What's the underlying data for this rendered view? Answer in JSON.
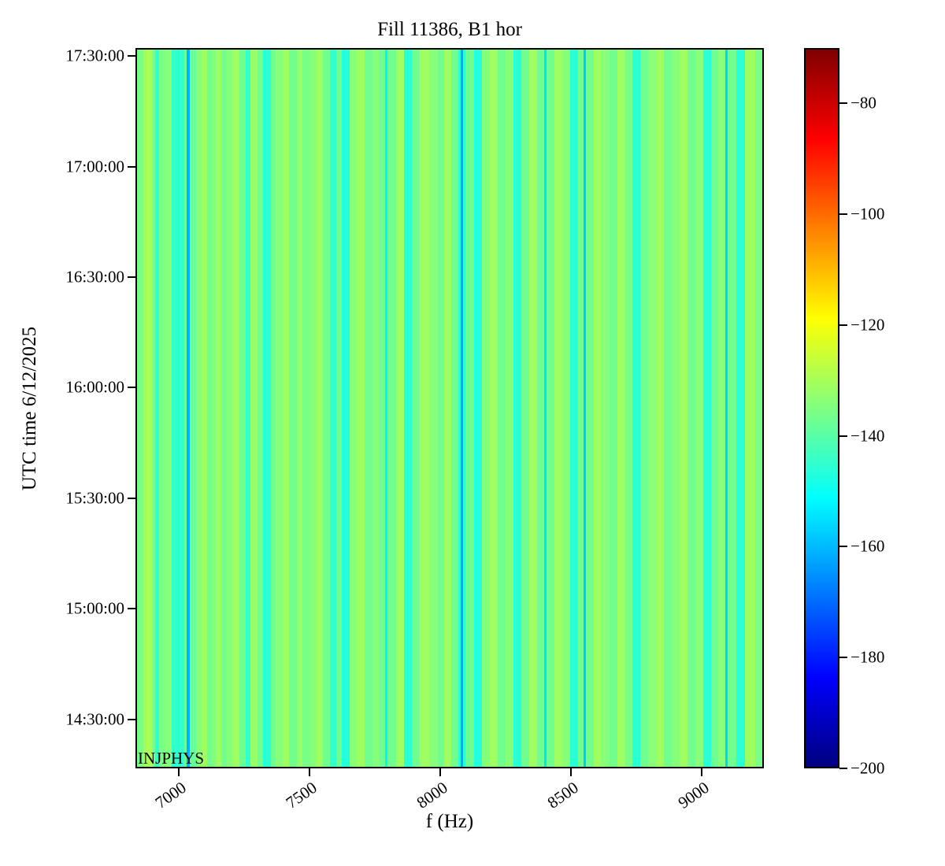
{
  "figure": {
    "title": "Fill 11386, B1 hor",
    "xlabel": "f (Hz)",
    "ylabel": "UTC time 6/12/2025",
    "annotation": "INJPHYS"
  },
  "chart_data": {
    "type": "heatmap",
    "title": "Fill 11386, B1 hor",
    "xlabel": "f (Hz)",
    "ylabel": "UTC time 6/12/2025",
    "annotation": "INJPHYS",
    "grid": false,
    "x_range_hz": [
      6835,
      9238
    ],
    "x_ticks_hz": [
      7000,
      7500,
      8000,
      8500,
      9000
    ],
    "y_time_top": "17:32:10",
    "y_time_bottom": "14:16:40",
    "y_ticks_time": [
      "17:30:00",
      "17:00:00",
      "16:30:00",
      "16:00:00",
      "15:30:00",
      "15:00:00",
      "14:30:00"
    ],
    "colorbar": {
      "colormap": "jet",
      "vmin": -200,
      "vmax": -70,
      "ticks": [
        -80,
        -100,
        -120,
        -140,
        -160,
        -180,
        -200
      ],
      "position": "right"
    },
    "value_description": "power spectral density (dB), constant in time per frequency column",
    "columns_format": [
      "f_start_hz",
      "f_end_hz",
      "value_db"
    ],
    "columns": [
      [
        6835,
        6860,
        -136
      ],
      [
        6860,
        6872,
        -131
      ],
      [
        6872,
        6896,
        -130
      ],
      [
        6896,
        6905,
        -137
      ],
      [
        6905,
        6920,
        -145
      ],
      [
        6920,
        6940,
        -136
      ],
      [
        6940,
        6967,
        -134
      ],
      [
        6967,
        7016,
        -145
      ],
      [
        7016,
        7027,
        -138
      ],
      [
        7027,
        7037,
        -161
      ],
      [
        7037,
        7062,
        -138
      ],
      [
        7062,
        7080,
        -134
      ],
      [
        7080,
        7105,
        -131
      ],
      [
        7105,
        7122,
        -137
      ],
      [
        7122,
        7140,
        -134
      ],
      [
        7140,
        7162,
        -131
      ],
      [
        7162,
        7180,
        -137
      ],
      [
        7180,
        7200,
        -134
      ],
      [
        7200,
        7228,
        -131
      ],
      [
        7228,
        7252,
        -137
      ],
      [
        7252,
        7270,
        -145
      ],
      [
        7270,
        7298,
        -132
      ],
      [
        7298,
        7320,
        -137
      ],
      [
        7320,
        7348,
        -146
      ],
      [
        7348,
        7365,
        -137
      ],
      [
        7365,
        7395,
        -134
      ],
      [
        7395,
        7420,
        -131
      ],
      [
        7420,
        7448,
        -137
      ],
      [
        7448,
        7470,
        -132
      ],
      [
        7470,
        7500,
        -136
      ],
      [
        7500,
        7525,
        -134
      ],
      [
        7525,
        7550,
        -131
      ],
      [
        7550,
        7576,
        -137
      ],
      [
        7576,
        7600,
        -145
      ],
      [
        7600,
        7622,
        -137
      ],
      [
        7622,
        7652,
        -147
      ],
      [
        7652,
        7680,
        -134
      ],
      [
        7680,
        7710,
        -131
      ],
      [
        7710,
        7740,
        -137
      ],
      [
        7740,
        7768,
        -134
      ],
      [
        7768,
        7788,
        -137
      ],
      [
        7788,
        7796,
        -152
      ],
      [
        7796,
        7830,
        -137
      ],
      [
        7830,
        7862,
        -131
      ],
      [
        7862,
        7892,
        -146
      ],
      [
        7892,
        7922,
        -137
      ],
      [
        7922,
        7958,
        -131
      ],
      [
        7958,
        7990,
        -134
      ],
      [
        7990,
        8015,
        -137
      ],
      [
        8015,
        8042,
        -131
      ],
      [
        8042,
        8070,
        -137
      ],
      [
        8070,
        8078,
        -146
      ],
      [
        8078,
        8087,
        -162
      ],
      [
        8087,
        8096,
        -146
      ],
      [
        8096,
        8130,
        -137
      ],
      [
        8130,
        8162,
        -147
      ],
      [
        8162,
        8192,
        -134
      ],
      [
        8192,
        8222,
        -131
      ],
      [
        8222,
        8252,
        -137
      ],
      [
        8252,
        8282,
        -134
      ],
      [
        8282,
        8312,
        -146
      ],
      [
        8312,
        8342,
        -137
      ],
      [
        8342,
        8372,
        -131
      ],
      [
        8372,
        8400,
        -137
      ],
      [
        8400,
        8408,
        -155
      ],
      [
        8408,
        8440,
        -137
      ],
      [
        8440,
        8470,
        -131
      ],
      [
        8470,
        8500,
        -134
      ],
      [
        8500,
        8530,
        -146
      ],
      [
        8530,
        8552,
        -137
      ],
      [
        8552,
        8561,
        -158
      ],
      [
        8561,
        8590,
        -137
      ],
      [
        8590,
        8620,
        -131
      ],
      [
        8620,
        8650,
        -134
      ],
      [
        8650,
        8680,
        -137
      ],
      [
        8680,
        8710,
        -131
      ],
      [
        8710,
        8740,
        -136
      ],
      [
        8740,
        8770,
        -146
      ],
      [
        8770,
        8800,
        -137
      ],
      [
        8800,
        8830,
        -134
      ],
      [
        8830,
        8860,
        -131
      ],
      [
        8860,
        8890,
        -137
      ],
      [
        8890,
        8920,
        -134
      ],
      [
        8920,
        8950,
        -131
      ],
      [
        8950,
        8980,
        -137
      ],
      [
        8980,
        9010,
        -134
      ],
      [
        9010,
        9040,
        -146
      ],
      [
        9040,
        9070,
        -137
      ],
      [
        9070,
        9096,
        -134
      ],
      [
        9096,
        9104,
        -157
      ],
      [
        9104,
        9138,
        -137
      ],
      [
        9138,
        9170,
        -146
      ],
      [
        9170,
        9210,
        -131
      ],
      [
        9210,
        9238,
        -136
      ]
    ]
  }
}
